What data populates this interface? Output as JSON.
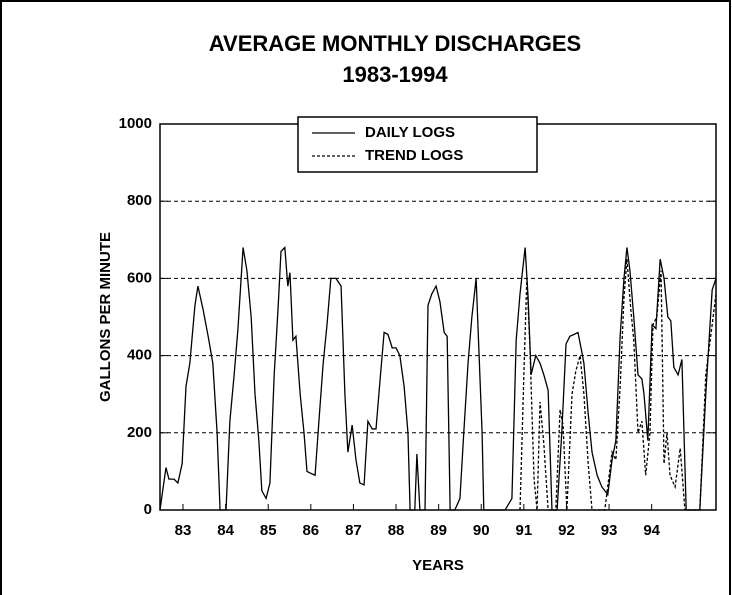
{
  "chart_data": {
    "type": "line",
    "title": "AVERAGE MONTHLY DISCHARGES",
    "subtitle": "1983-1994",
    "x_label": "YEARS",
    "y_label": "GALLONS PER MINUTE",
    "xlim": [
      82.46,
      95.51
    ],
    "xticks": [
      83,
      84,
      85,
      86,
      87,
      88,
      89,
      90,
      91,
      92,
      93,
      94
    ],
    "ylim": [
      0,
      1000
    ],
    "yticks": [
      0,
      200,
      400,
      600,
      800,
      1000
    ],
    "grid": true,
    "legend": "top",
    "series": [
      {
        "name": "DAILY LOGS",
        "color": "#000000",
        "dash": false,
        "x": [
          82.46,
          82.6,
          82.67,
          82.79,
          82.88,
          82.98,
          83.07,
          83.16,
          83.28,
          83.35,
          83.47,
          83.59,
          83.7,
          83.8,
          83.87,
          84.01,
          84.1,
          84.2,
          84.29,
          84.41,
          84.5,
          84.6,
          84.69,
          84.78,
          84.85,
          84.95,
          85.04,
          85.14,
          85.23,
          85.3,
          85.39,
          85.46,
          85.51,
          85.58,
          85.65,
          85.75,
          85.84,
          85.91,
          86.0,
          86.1,
          86.19,
          86.29,
          86.38,
          86.47,
          86.59,
          86.71,
          86.8,
          86.87,
          86.97,
          87.06,
          87.15,
          87.25,
          87.34,
          87.44,
          87.53,
          87.62,
          87.72,
          87.81,
          87.91,
          88.0,
          88.09,
          88.19,
          88.28,
          88.33,
          88.44,
          88.49,
          88.56,
          88.68,
          88.75,
          88.84,
          88.94,
          89.03,
          89.13,
          89.2,
          89.27,
          89.38,
          89.5,
          89.59,
          89.69,
          89.78,
          89.88,
          89.95,
          90.02,
          90.06,
          90.56,
          90.72,
          90.82,
          90.91,
          91.03,
          91.1,
          91.17,
          91.28,
          91.38,
          91.47,
          91.57,
          91.66,
          91.78,
          91.89,
          91.99,
          92.08,
          92.18,
          92.27,
          92.36,
          92.41,
          92.51,
          92.6,
          92.72,
          92.83,
          92.97,
          93.07,
          93.16,
          93.26,
          93.35,
          93.42,
          93.49,
          93.58,
          93.68,
          93.77,
          93.82,
          93.91,
          94.01,
          94.1,
          94.2,
          94.29,
          94.38,
          94.45,
          94.52,
          94.62,
          94.71,
          94.81,
          95.13,
          95.27,
          95.42,
          95.51
        ],
        "values": [
          0,
          110,
          80,
          80,
          70,
          120,
          320,
          380,
          530,
          580,
          520,
          450,
          380,
          200,
          0,
          0,
          230,
          350,
          470,
          680,
          620,
          500,
          300,
          180,
          50,
          30,
          70,
          350,
          520,
          670,
          680,
          580,
          615,
          440,
          450,
          300,
          200,
          100,
          95,
          90,
          230,
          380,
          480,
          600,
          600,
          580,
          300,
          150,
          220,
          130,
          70,
          65,
          230,
          210,
          210,
          330,
          460,
          455,
          420,
          420,
          400,
          320,
          200,
          0,
          0,
          145,
          0,
          0,
          530,
          560,
          580,
          540,
          460,
          450,
          0,
          0,
          30,
          200,
          380,
          500,
          600,
          400,
          200,
          0,
          0,
          30,
          440,
          560,
          680,
          550,
          350,
          400,
          380,
          350,
          310,
          0,
          0,
          200,
          430,
          450,
          455,
          460,
          410,
          380,
          250,
          150,
          90,
          60,
          40,
          130,
          180,
          450,
          600,
          680,
          620,
          500,
          350,
          340,
          300,
          180,
          480,
          470,
          650,
          600,
          500,
          490,
          370,
          350,
          390,
          0,
          0,
          300,
          570,
          600
        ]
      },
      {
        "name": "TREND LOGS",
        "color": "#000000",
        "dash": true,
        "x": [
          90.91,
          91.0,
          91.07,
          91.14,
          91.24,
          91.31,
          91.38,
          91.47,
          91.57,
          91.75,
          91.85,
          91.92,
          92.01,
          92.13,
          92.22,
          92.32,
          92.41,
          92.51,
          92.6,
          92.9,
          93.07,
          93.16,
          93.26,
          93.35,
          93.42,
          93.51,
          93.58,
          93.68,
          93.77,
          93.86,
          93.96,
          94.03,
          94.12,
          94.22,
          94.29,
          94.36,
          94.43,
          94.55,
          94.67,
          94.78,
          95.13,
          95.27,
          95.42,
          95.51
        ],
        "values": [
          0,
          350,
          600,
          430,
          80,
          0,
          280,
          170,
          0,
          0,
          260,
          220,
          0,
          300,
          360,
          400,
          300,
          120,
          0,
          0,
          150,
          130,
          320,
          550,
          650,
          520,
          440,
          200,
          230,
          90,
          200,
          480,
          500,
          620,
          120,
          200,
          90,
          60,
          160,
          0,
          0,
          350,
          480,
          560
        ]
      }
    ]
  }
}
